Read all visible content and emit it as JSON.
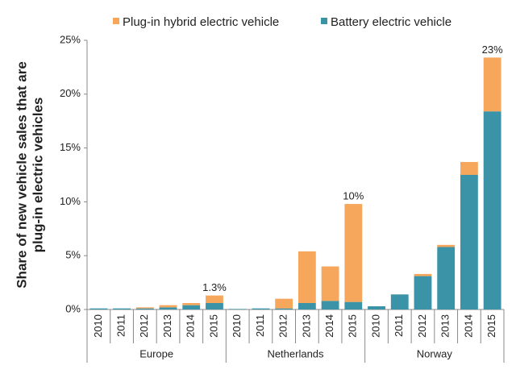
{
  "chart_data": {
    "type": "stacked_bar",
    "y_label": [
      "Share of new vehicle sales that are",
      "plug-in electric vehicles"
    ],
    "groups": [
      {
        "name": "Europe",
        "categories": [
          "2010",
          "2011",
          "2012",
          "2013",
          "2014",
          "2015"
        ]
      },
      {
        "name": "Netherlands",
        "categories": [
          "2010",
          "2011",
          "2012",
          "2013",
          "2014",
          "2015"
        ]
      },
      {
        "name": "Norway",
        "categories": [
          "2010",
          "2011",
          "2012",
          "2013",
          "2014",
          "2015"
        ]
      }
    ],
    "series": [
      {
        "name": "Plug-in hybrid electric vehicle",
        "color": "#f6a75c",
        "values": [
          0,
          0,
          0.1,
          0.2,
          0.2,
          0.7,
          0,
          0,
          0.9,
          4.8,
          3.2,
          9.1,
          0,
          0,
          0.2,
          0.2,
          1.2,
          5.0
        ]
      },
      {
        "name": "Battery electric vehicle",
        "color": "#3b93a7",
        "values": [
          0.1,
          0.1,
          0.1,
          0.2,
          0.4,
          0.6,
          0.05,
          0.1,
          0.1,
          0.6,
          0.8,
          0.7,
          0.3,
          1.4,
          3.1,
          5.8,
          12.5,
          18.4
        ]
      }
    ],
    "annotations": [
      {
        "text": "1.3%",
        "group": "Europe",
        "category": "2015"
      },
      {
        "text": "10%",
        "group": "Netherlands",
        "category": "2015"
      },
      {
        "text": "23%",
        "group": "Norway",
        "category": "2015"
      }
    ],
    "ylim": [
      0,
      25
    ],
    "yticks": [
      {
        "value": 0,
        "label": "0%"
      },
      {
        "value": 5,
        "label": "5%"
      },
      {
        "value": 10,
        "label": "10%"
      },
      {
        "value": 15,
        "label": "15%"
      },
      {
        "value": 20,
        "label": "20%"
      },
      {
        "value": 25,
        "label": "25%"
      }
    ],
    "legend": "top"
  }
}
